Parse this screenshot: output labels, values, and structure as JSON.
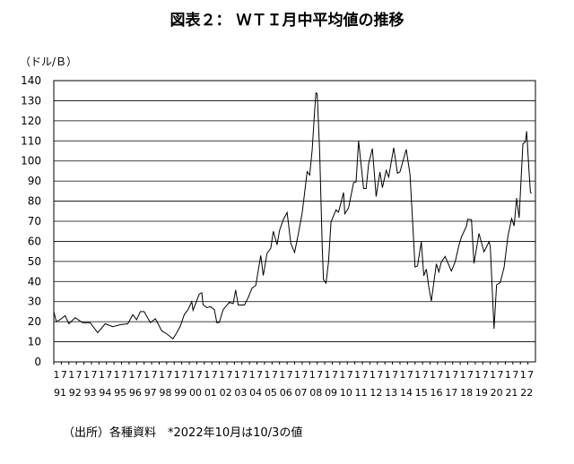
{
  "chart_data": {
    "type": "line",
    "title": "図表２： ＷＴＩ月中平均値の推移",
    "y_label": "（ドル/Ｂ）",
    "note": "（出所）各種資料　*2022年10月は10/3の値",
    "ylim": [
      0,
      140
    ],
    "yticks": [
      0,
      10,
      20,
      30,
      40,
      50,
      60,
      70,
      80,
      90,
      100,
      110,
      120,
      130,
      140
    ],
    "xlim": [
      "1991-01",
      "2022-12"
    ],
    "grid": true,
    "xticks": [
      {
        "value": "1991-01",
        "label": "1"
      },
      {
        "value": "1991-07",
        "label": "7"
      },
      {
        "value": "1992-01",
        "label": "1"
      },
      {
        "value": "1992-07",
        "label": "7"
      },
      {
        "value": "1993-01",
        "label": "1"
      },
      {
        "value": "1993-07",
        "label": "7"
      },
      {
        "value": "1994-01",
        "label": "1"
      },
      {
        "value": "1994-07",
        "label": "7"
      },
      {
        "value": "1995-01",
        "label": "1"
      },
      {
        "value": "1995-07",
        "label": "7"
      },
      {
        "value": "1996-01",
        "label": "1"
      },
      {
        "value": "1996-07",
        "label": "7"
      },
      {
        "value": "1997-01",
        "label": "1"
      },
      {
        "value": "1997-07",
        "label": "7"
      },
      {
        "value": "1998-01",
        "label": "1"
      },
      {
        "value": "1998-07",
        "label": "7"
      },
      {
        "value": "1999-01",
        "label": "1"
      },
      {
        "value": "1999-07",
        "label": "7"
      },
      {
        "value": "2000-01",
        "label": "1"
      },
      {
        "value": "2000-07",
        "label": "7"
      },
      {
        "value": "2001-01",
        "label": "1"
      },
      {
        "value": "2001-07",
        "label": "7"
      },
      {
        "value": "2002-01",
        "label": "1"
      },
      {
        "value": "2002-07",
        "label": "7"
      },
      {
        "value": "2003-01",
        "label": "1"
      },
      {
        "value": "2003-07",
        "label": "7"
      },
      {
        "value": "2004-01",
        "label": "1"
      },
      {
        "value": "2004-07",
        "label": "7"
      },
      {
        "value": "2005-01",
        "label": "1"
      },
      {
        "value": "2005-07",
        "label": "7"
      },
      {
        "value": "2006-01",
        "label": "1"
      },
      {
        "value": "2006-07",
        "label": "7"
      },
      {
        "value": "2007-01",
        "label": "1"
      },
      {
        "value": "2007-07",
        "label": "7"
      },
      {
        "value": "2008-01",
        "label": "1"
      },
      {
        "value": "2008-07",
        "label": "7"
      },
      {
        "value": "2009-01",
        "label": "1"
      },
      {
        "value": "2009-07",
        "label": "7"
      },
      {
        "value": "2010-01",
        "label": "1"
      },
      {
        "value": "2010-07",
        "label": "7"
      },
      {
        "value": "2011-01",
        "label": "1"
      },
      {
        "value": "2011-07",
        "label": "7"
      },
      {
        "value": "2012-01",
        "label": "1"
      },
      {
        "value": "2012-07",
        "label": "7"
      },
      {
        "value": "2013-01",
        "label": "1"
      },
      {
        "value": "2013-07",
        "label": "7"
      },
      {
        "value": "2014-01",
        "label": "1"
      },
      {
        "value": "2014-07",
        "label": "7"
      },
      {
        "value": "2015-01",
        "label": "1"
      },
      {
        "value": "2015-07",
        "label": "7"
      },
      {
        "value": "2016-01",
        "label": "1"
      },
      {
        "value": "2016-07",
        "label": "7"
      },
      {
        "value": "2017-01",
        "label": "1"
      },
      {
        "value": "2017-07",
        "label": "7"
      },
      {
        "value": "2018-01",
        "label": "1"
      },
      {
        "value": "2018-07",
        "label": "7"
      },
      {
        "value": "2019-01",
        "label": "1"
      },
      {
        "value": "2019-07",
        "label": "7"
      },
      {
        "value": "2020-01",
        "label": "1"
      },
      {
        "value": "2020-07",
        "label": "7"
      },
      {
        "value": "2021-01",
        "label": "1"
      },
      {
        "value": "2021-07",
        "label": "7"
      },
      {
        "value": "2022-01",
        "label": "1"
      },
      {
        "value": "2022-07",
        "label": "7"
      }
    ],
    "year_ticks": [
      {
        "value": "1991-01",
        "label": "91"
      },
      {
        "value": "1992-01",
        "label": "92"
      },
      {
        "value": "1993-01",
        "label": "93"
      },
      {
        "value": "1994-01",
        "label": "94"
      },
      {
        "value": "1995-01",
        "label": "95"
      },
      {
        "value": "1996-01",
        "label": "96"
      },
      {
        "value": "1997-01",
        "label": "97"
      },
      {
        "value": "1998-01",
        "label": "98"
      },
      {
        "value": "1999-01",
        "label": "99"
      },
      {
        "value": "2000-01",
        "label": "00"
      },
      {
        "value": "2001-01",
        "label": "01"
      },
      {
        "value": "2002-01",
        "label": "02"
      },
      {
        "value": "2003-01",
        "label": "03"
      },
      {
        "value": "2004-01",
        "label": "04"
      },
      {
        "value": "2005-01",
        "label": "05"
      },
      {
        "value": "2006-01",
        "label": "06"
      },
      {
        "value": "2007-01",
        "label": "07"
      },
      {
        "value": "2008-01",
        "label": "08"
      },
      {
        "value": "2009-01",
        "label": "09"
      },
      {
        "value": "2010-01",
        "label": "10"
      },
      {
        "value": "2011-01",
        "label": "11"
      },
      {
        "value": "2012-01",
        "label": "12"
      },
      {
        "value": "2013-01",
        "label": "13"
      },
      {
        "value": "2014-01",
        "label": "14"
      },
      {
        "value": "2015-01",
        "label": "15"
      },
      {
        "value": "2016-01",
        "label": "16"
      },
      {
        "value": "2017-01",
        "label": "17"
      },
      {
        "value": "2018-01",
        "label": "18"
      },
      {
        "value": "2019-01",
        "label": "19"
      },
      {
        "value": "2020-01",
        "label": "20"
      },
      {
        "value": "2021-01",
        "label": "21"
      },
      {
        "value": "2022-01",
        "label": "22"
      }
    ],
    "x": [
      "1991-01",
      "1991-03",
      "1991-07",
      "1991-10",
      "1992-01",
      "1992-06",
      "1992-12",
      "1993-06",
      "1993-12",
      "1994-06",
      "1994-12",
      "1995-06",
      "1995-12",
      "1996-04",
      "1996-07",
      "1996-10",
      "1997-01",
      "1997-06",
      "1997-10",
      "1998-03",
      "1998-07",
      "1998-12",
      "1999-03",
      "1999-06",
      "1999-09",
      "1999-12",
      "2000-03",
      "2000-04",
      "2000-09",
      "2000-11",
      "2000-12",
      "2001-03",
      "2001-06",
      "2001-09",
      "2001-11",
      "2002-01",
      "2002-04",
      "2002-09",
      "2002-12",
      "2003-02",
      "2003-04",
      "2003-09",
      "2003-12",
      "2004-03",
      "2004-06",
      "2004-10",
      "2004-12",
      "2005-03",
      "2005-06",
      "2005-08",
      "2005-11",
      "2006-01",
      "2006-04",
      "2006-07",
      "2006-10",
      "2007-01",
      "2007-04",
      "2007-07",
      "2007-11",
      "2008-01",
      "2008-03",
      "2008-05",
      "2008-06",
      "2008-07",
      "2008-09",
      "2008-11",
      "2008-12",
      "2009-02",
      "2009-04",
      "2009-06",
      "2009-10",
      "2009-12",
      "2010-04",
      "2010-05",
      "2010-08",
      "2010-12",
      "2011-02",
      "2011-04",
      "2011-08",
      "2011-10",
      "2011-12",
      "2012-03",
      "2012-06",
      "2012-09",
      "2012-11",
      "2013-02",
      "2013-04",
      "2013-08",
      "2013-11",
      "2014-01",
      "2014-06",
      "2014-09",
      "2014-12",
      "2015-01",
      "2015-03",
      "2015-06",
      "2015-08",
      "2015-10",
      "2015-12",
      "2016-02",
      "2016-06",
      "2016-08",
      "2016-10",
      "2017-01",
      "2017-06",
      "2017-09",
      "2017-12",
      "2018-02",
      "2018-06",
      "2018-07",
      "2018-10",
      "2018-12",
      "2019-04",
      "2019-08",
      "2019-12",
      "2020-01",
      "2020-03",
      "2020-04",
      "2020-06",
      "2020-09",
      "2020-12",
      "2021-03",
      "2021-06",
      "2021-08",
      "2021-10",
      "2021-12",
      "2022-03",
      "2022-05",
      "2022-06",
      "2022-08",
      "2022-09",
      "2022-10"
    ],
    "series": [
      {
        "color": "#000000",
        "values": [
          25,
          20,
          21.5,
          23,
          19,
          22,
          19.5,
          19.5,
          14.5,
          19,
          17.5,
          18.5,
          19,
          23.5,
          21,
          25,
          25,
          19.5,
          21.5,
          15.5,
          14,
          11.5,
          14.5,
          18,
          23.5,
          26,
          30,
          25.7,
          33.8,
          34.4,
          28.5,
          27,
          27.5,
          26,
          19.5,
          19.7,
          26,
          29.7,
          29,
          35.8,
          28.3,
          28.3,
          32,
          36.7,
          38,
          53,
          43,
          54,
          56.6,
          65,
          58.3,
          65.5,
          70.8,
          74.4,
          58.9,
          54.5,
          63.9,
          74,
          94.7,
          93,
          105.5,
          125.4,
          133.9,
          133.4,
          104,
          57.4,
          41,
          39.2,
          49.6,
          69.6,
          75.7,
          74.5,
          84.3,
          73.7,
          76.6,
          89.2,
          89.6,
          110,
          86.3,
          86.3,
          98.6,
          106.2,
          82.3,
          94.5,
          86.7,
          95.3,
          92,
          106.6,
          93.9,
          94.6,
          105.8,
          93.2,
          59.3,
          47.2,
          47.8,
          59.8,
          42.9,
          46.2,
          37.2,
          30.3,
          48.8,
          44.8,
          49.8,
          52.5,
          45.2,
          49.8,
          58,
          62.2,
          67.5,
          71,
          70.8,
          49,
          63.9,
          54.8,
          59.8,
          57.5,
          30,
          16.5,
          38.3,
          39.6,
          47,
          62.3,
          71.4,
          67.7,
          81.5,
          71.7,
          108.5,
          109.6,
          114.8,
          93.7,
          84.3,
          84
        ]
      }
    ]
  }
}
